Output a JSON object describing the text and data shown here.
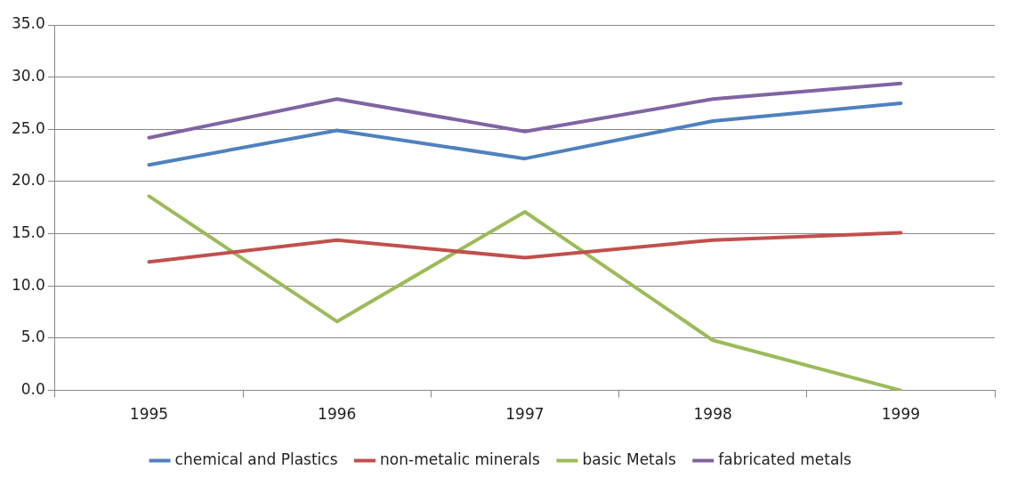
{
  "chart_data": {
    "type": "line",
    "categories": [
      "1995",
      "1996",
      "1997",
      "1998",
      "1999"
    ],
    "series": [
      {
        "name": "chemical and Plastics",
        "color": "#4f81bd",
        "values": [
          21.6,
          24.9,
          22.2,
          25.8,
          27.5
        ]
      },
      {
        "name": "non-metalic minerals",
        "color": "#c0504d",
        "values": [
          12.3,
          14.4,
          12.7,
          14.4,
          15.1
        ]
      },
      {
        "name": "basic Metals",
        "color": "#9bbb59",
        "values": [
          18.6,
          6.6,
          17.1,
          4.8,
          0
        ]
      },
      {
        "name": "fabricated metals",
        "color": "#8064a2",
        "values": [
          24.2,
          27.9,
          24.8,
          27.9,
          29.4
        ]
      }
    ],
    "ylim": [
      0,
      35
    ],
    "yticks": [
      {
        "value": 0,
        "label": "0.0"
      },
      {
        "value": 5,
        "label": "5.0"
      },
      {
        "value": 10,
        "label": "10.0"
      },
      {
        "value": 15,
        "label": "15.0"
      },
      {
        "value": 20,
        "label": "20.0"
      },
      {
        "value": 25,
        "label": "25.0"
      },
      {
        "value": 30,
        "label": "30.0"
      },
      {
        "value": 35,
        "label": "35.0"
      }
    ],
    "grid": "y",
    "legend": "bottom",
    "marker": "none",
    "line_style": "solid"
  }
}
